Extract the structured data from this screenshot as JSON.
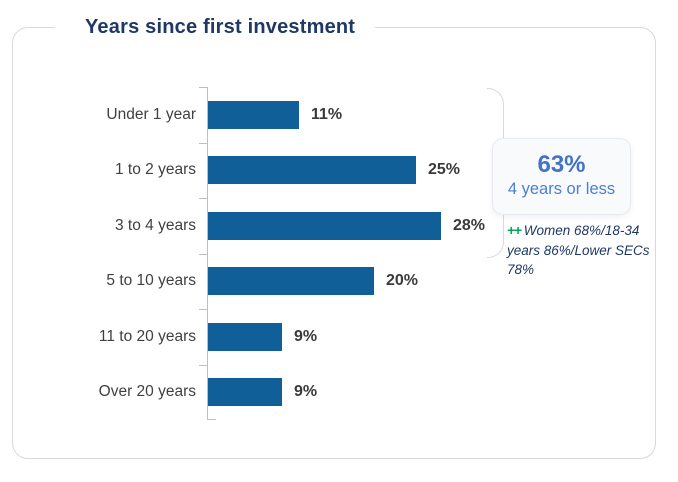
{
  "title": "Years since first investment",
  "chart_data": {
    "type": "bar",
    "orientation": "horizontal",
    "title": "Years since first investment",
    "categories": [
      "Under 1 year",
      "1 to 2 years",
      "3 to 4 years",
      "5 to 10 years",
      "11 to 20 years",
      "Over 20 years"
    ],
    "values": [
      11,
      25,
      28,
      20,
      9,
      9
    ],
    "value_labels": [
      "11%",
      "25%",
      "28%",
      "20%",
      "9%",
      "9%"
    ],
    "unit": "%",
    "xlim": [
      0,
      30
    ],
    "grid": false,
    "legend": "none"
  },
  "callout": {
    "value": "63%",
    "label": "4 years or less"
  },
  "annotation": {
    "marker": "++",
    "text": "Women 68%/18-34 years 86%/Lower SECs 78%"
  },
  "colors": {
    "bar": "#115f99",
    "title": "#1f3864",
    "callout_blue": "#4472c4",
    "annotation_navy": "#1f3864",
    "marker_green": "#00a651",
    "border_gray": "#d9d9d9",
    "axis_gray": "#bfbfbf",
    "text_dark": "#404040"
  }
}
